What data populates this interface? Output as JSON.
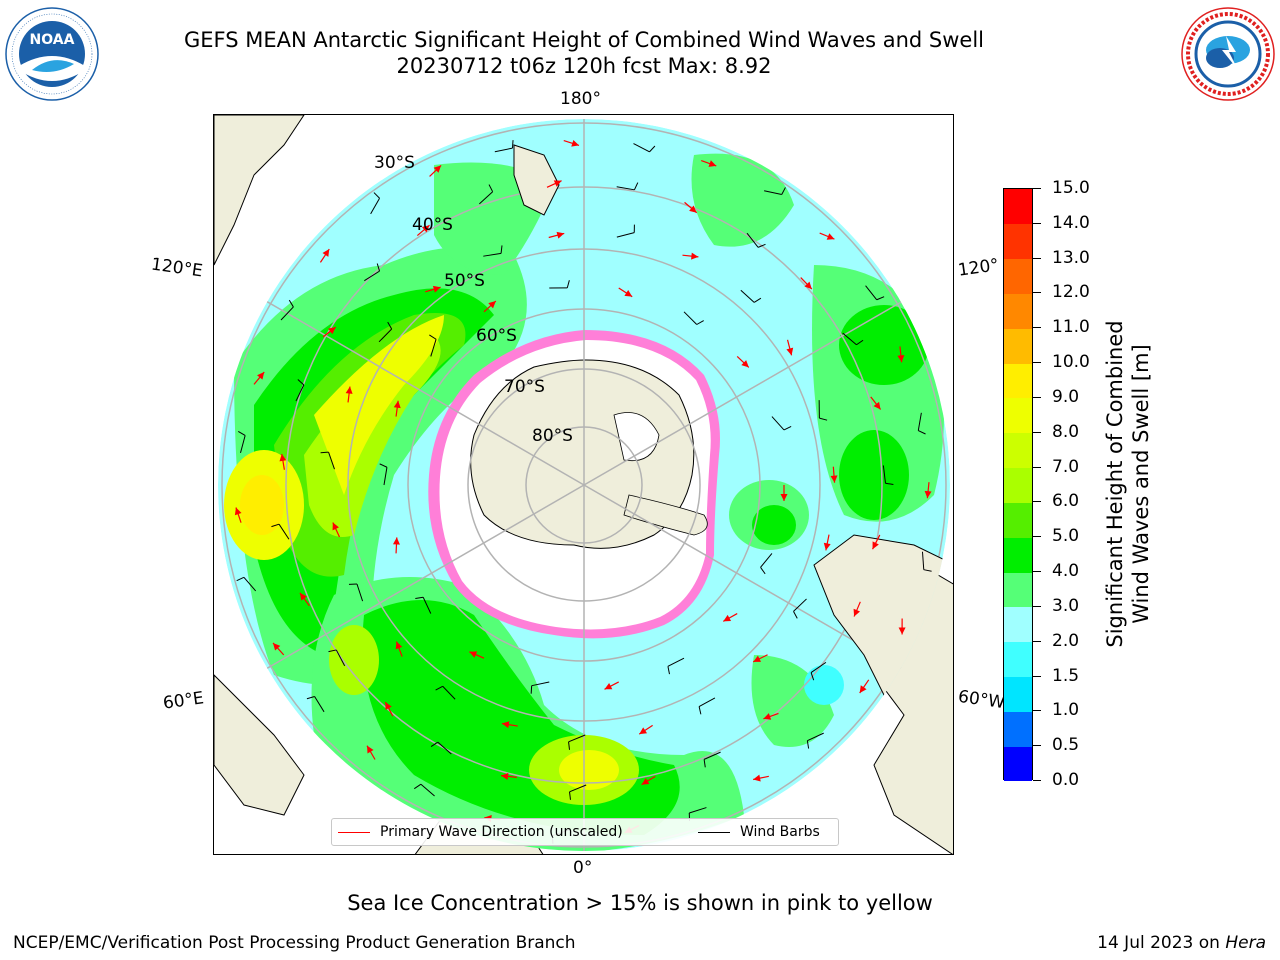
{
  "title": {
    "line1": "GEFS MEAN Antarctic Significant Height of Combined Wind Waves and Swell",
    "line2": "20230712 t06z 120h fcst   Max: 8.92"
  },
  "logos": {
    "left": {
      "icon": "noaa-logo",
      "text": "NOAA",
      "ring_text": "NATIONAL OCEANIC AND ATMOSPHERIC ADMINISTRATION · U.S. DEPARTMENT OF COMMERCE",
      "color": "#1b5fa8"
    },
    "right": {
      "icon": "nws-logo",
      "ring_text": "NATIONAL WEATHER SERVICE",
      "color": "#e02020"
    }
  },
  "map": {
    "projection": "south polar stereographic",
    "longitude_labels": {
      "top": "180°",
      "bottom": "0°",
      "left_upper": "120°E",
      "left_lower": "60°E",
      "right_upper": "120°",
      "right_lower": "60°W"
    },
    "latitude_labels": [
      "30°S",
      "40°S",
      "50°S",
      "60°S",
      "70°S",
      "80°S"
    ],
    "colors": {
      "land": "#efeedb",
      "coastline": "#000000",
      "graticule": "#b3b3b3",
      "wave_arrow": "#ff0000",
      "wind_barb": "#000000",
      "ice": [
        "#ff00ff",
        "#ff7fd8",
        "#ffa040",
        "#ffd040"
      ]
    }
  },
  "legend": {
    "items": [
      {
        "label": "Primary Wave Direction (unscaled)",
        "color": "#ff0000"
      },
      {
        "label": "Wind Barbs",
        "color": "#000000"
      }
    ]
  },
  "colorbar": {
    "title_line1": "Significant Height of Combined",
    "title_line2": "Wind Waves and Swell [m]",
    "ticks": [
      "0.0",
      "0.5",
      "1.0",
      "1.5",
      "2.0",
      "3.0",
      "4.0",
      "5.0",
      "6.0",
      "7.0",
      "8.0",
      "9.0",
      "10.0",
      "11.0",
      "12.0",
      "13.0",
      "14.0",
      "15.0"
    ],
    "colors": [
      "#0000ff",
      "#0070ff",
      "#00e5ff",
      "#40ffff",
      "#a0ffff",
      "#55ff77",
      "#00ee00",
      "#55ee00",
      "#aaff00",
      "#ccff00",
      "#eeff00",
      "#ffee00",
      "#ffbb00",
      "#ff8800",
      "#ff6600",
      "#ff3300",
      "#ff0000"
    ]
  },
  "subtitle": "Sea Ice Concentration > 15% is shown in pink to yellow",
  "footer": {
    "left": "NCEP/EMC/Verification Post Processing Product Generation Branch",
    "right_prefix": "14 Jul 2023 on ",
    "right_host": "Hera"
  }
}
